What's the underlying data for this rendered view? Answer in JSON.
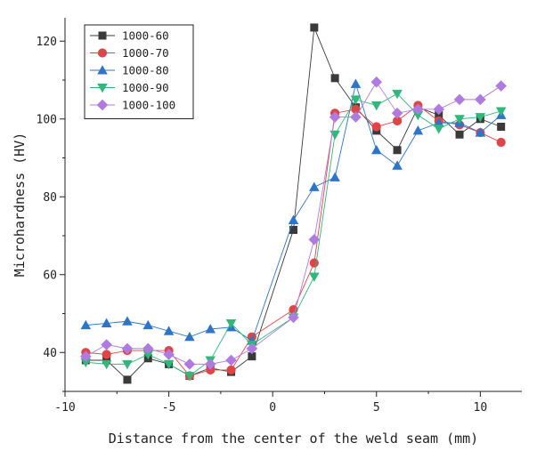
{
  "chart_data": {
    "type": "line",
    "title": "",
    "xlabel": "Distance from the center of the weld seam  (mm)",
    "ylabel": "Microhardness (HV)",
    "xlim": [
      -10,
      12
    ],
    "ylim": [
      30,
      126
    ],
    "x_ticks": [
      -10,
      -5,
      0,
      5,
      10
    ],
    "y_ticks": [
      40,
      60,
      80,
      100,
      120
    ],
    "x_tick_labels": [
      "-10",
      "-5",
      "0",
      "5",
      "10"
    ],
    "y_tick_labels": [
      "40",
      "60",
      "80",
      "100",
      "120"
    ],
    "grid": false,
    "legend_position": "top-left",
    "series": [
      {
        "name": "1000-60",
        "color": "#3a3a3a",
        "marker": "square",
        "x": [
          -9,
          -8,
          -7,
          -6,
          -5,
          -4,
          -3,
          -2,
          -1,
          1,
          2,
          3,
          4,
          5,
          6,
          7,
          8,
          9,
          10,
          11
        ],
        "y": [
          38,
          38,
          33,
          38.5,
          37,
          34,
          36,
          35,
          39,
          71.5,
          123.5,
          110.5,
          103,
          97,
          92,
          103,
          101,
          96,
          100,
          98
        ]
      },
      {
        "name": "1000-70",
        "color": "#e04545",
        "marker": "circle",
        "x": [
          -9,
          -8,
          -7,
          -6,
          -5,
          -4,
          -3,
          -2,
          -1,
          1,
          2,
          3,
          4,
          5,
          6,
          7,
          8,
          9,
          10,
          11
        ],
        "y": [
          40,
          39.5,
          40.5,
          40.5,
          40.5,
          34,
          35.5,
          35.5,
          44,
          51,
          63,
          101.5,
          102.5,
          98,
          99.5,
          103.5,
          99.5,
          98.5,
          96.5,
          94
        ]
      },
      {
        "name": "1000-80",
        "color": "#2e74c8",
        "marker": "triangle-up",
        "x": [
          -9,
          -8,
          -7,
          -6,
          -5,
          -4,
          -3,
          -2,
          -1,
          1,
          2,
          3,
          4,
          5,
          6,
          7,
          8,
          9,
          10,
          11
        ],
        "y": [
          47,
          47.5,
          48,
          47,
          45.5,
          44,
          46,
          46.5,
          43,
          74,
          82.5,
          85,
          109,
          92,
          88,
          97,
          99,
          99,
          96.5,
          101
        ]
      },
      {
        "name": "1000-90",
        "color": "#2fb87a",
        "marker": "triangle-down",
        "x": [
          -9,
          -8,
          -7,
          -6,
          -5,
          -4,
          -3,
          -2,
          -1,
          1,
          2,
          3,
          4,
          5,
          6,
          7,
          8,
          9,
          10,
          11
        ],
        "y": [
          37.5,
          37,
          37,
          39.5,
          37,
          34,
          38,
          47.5,
          42,
          49,
          59.5,
          96,
          105,
          103.5,
          106.5,
          101,
          97.5,
          100,
          100.5,
          102
        ]
      },
      {
        "name": "1000-100",
        "color": "#b07be0",
        "marker": "diamond",
        "x": [
          -9,
          -8,
          -7,
          -6,
          -5,
          -4,
          -3,
          -2,
          -1,
          1,
          2,
          3,
          4,
          5,
          6,
          7,
          8,
          9,
          10,
          11
        ],
        "y": [
          39,
          42,
          41,
          41,
          39.5,
          37,
          37,
          38,
          41,
          49,
          69,
          100.5,
          100.5,
          109.5,
          101.5,
          102.5,
          102.5,
          105,
          105,
          108.5
        ]
      }
    ]
  }
}
